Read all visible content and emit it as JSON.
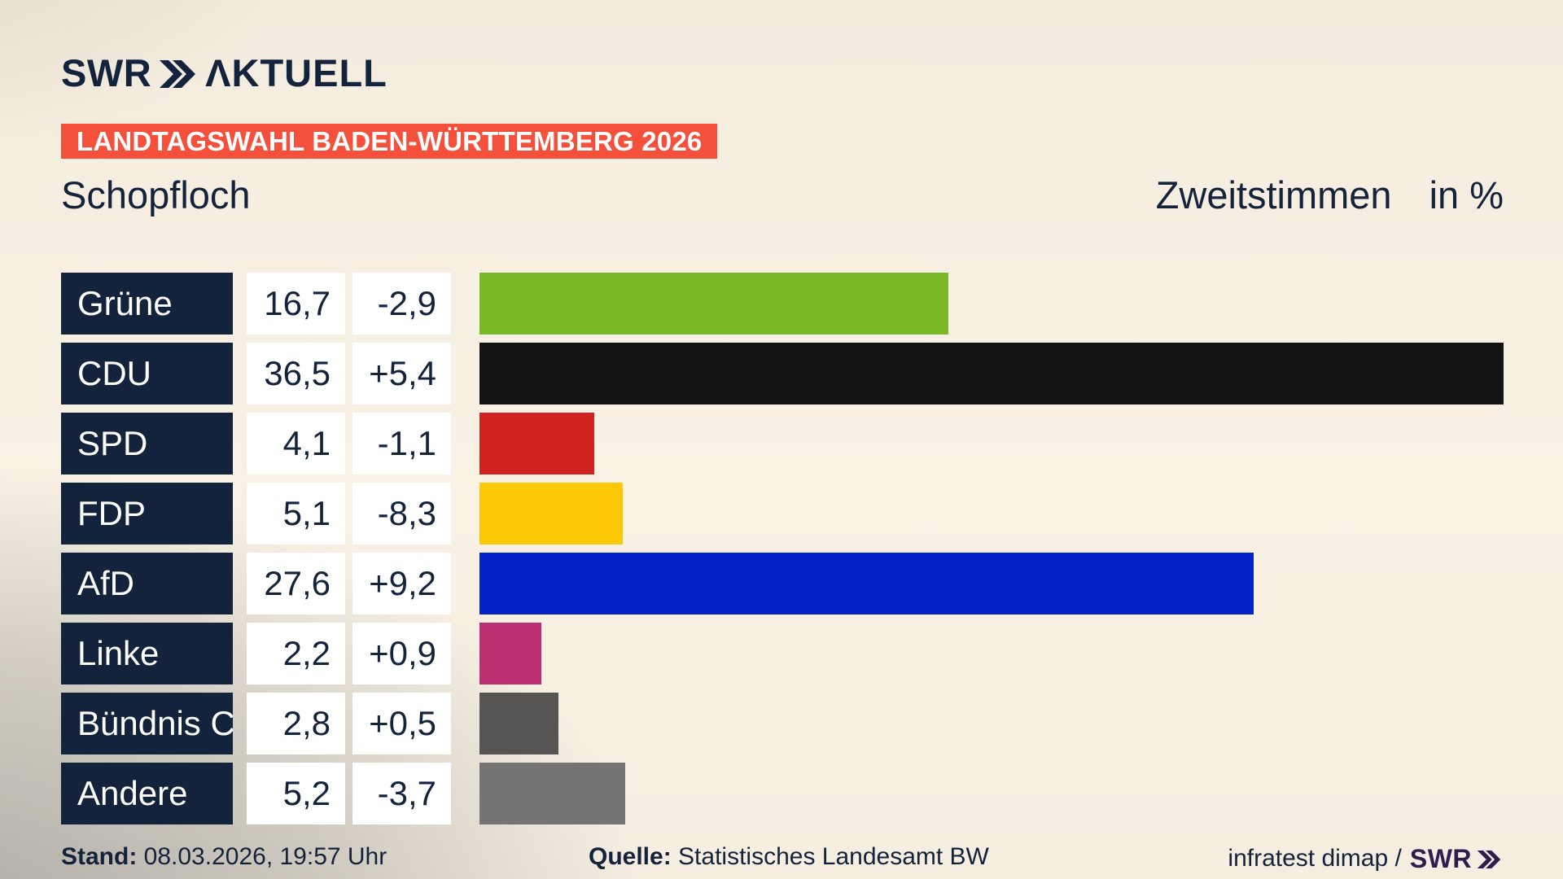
{
  "colors": {
    "navy": "#14233c",
    "badge-red": "#f4503c",
    "brand-purple": "#2f1d4e",
    "cell-white": "#ffffff"
  },
  "logo": {
    "brand": "SWR",
    "product": "ΛKTUELL"
  },
  "badge": {
    "label": "LANDTAGSWAHL BADEN-WÜRTTEMBERG 2026"
  },
  "header": {
    "title": "Schopfloch",
    "measure": "Zweitstimmen",
    "unit": "in %"
  },
  "chart_data": {
    "type": "bar",
    "orientation": "horizontal",
    "title": "Zweitstimmen in %",
    "unit": "%",
    "grid": false,
    "legend": false,
    "xlim": [
      0,
      36.5
    ],
    "categories": [
      "Grüne",
      "CDU",
      "SPD",
      "FDP",
      "AfD",
      "Linke",
      "Bündnis C",
      "Andere"
    ],
    "values": [
      16.7,
      36.5,
      4.1,
      5.1,
      27.6,
      2.2,
      2.8,
      5.2
    ],
    "value_labels": [
      "16,7",
      "36,5",
      "4,1",
      "5,1",
      "27,6",
      "2,2",
      "2,8",
      "5,2"
    ],
    "changes": [
      -2.9,
      5.4,
      -1.1,
      -8.3,
      9.2,
      0.9,
      0.5,
      -3.7
    ],
    "change_labels": [
      "-2,9",
      "+5,4",
      "-1,1",
      "-8,3",
      "+9,2",
      "+0,9",
      "+0,5",
      "-3,7"
    ],
    "bar_colors": [
      "#79b928",
      "#131313",
      "#d2221f",
      "#fdc906",
      "#0522c8",
      "#bb2f72",
      "#565554",
      "#757473"
    ]
  },
  "footer": {
    "stand_label": "Stand:",
    "stand_value": "08.03.2026, 19:57 Uhr",
    "source_label": "Quelle:",
    "source_value": "Statistisches Landesamt BW",
    "credit_text": "infratest dimap /",
    "credit_brand": "SWR"
  }
}
